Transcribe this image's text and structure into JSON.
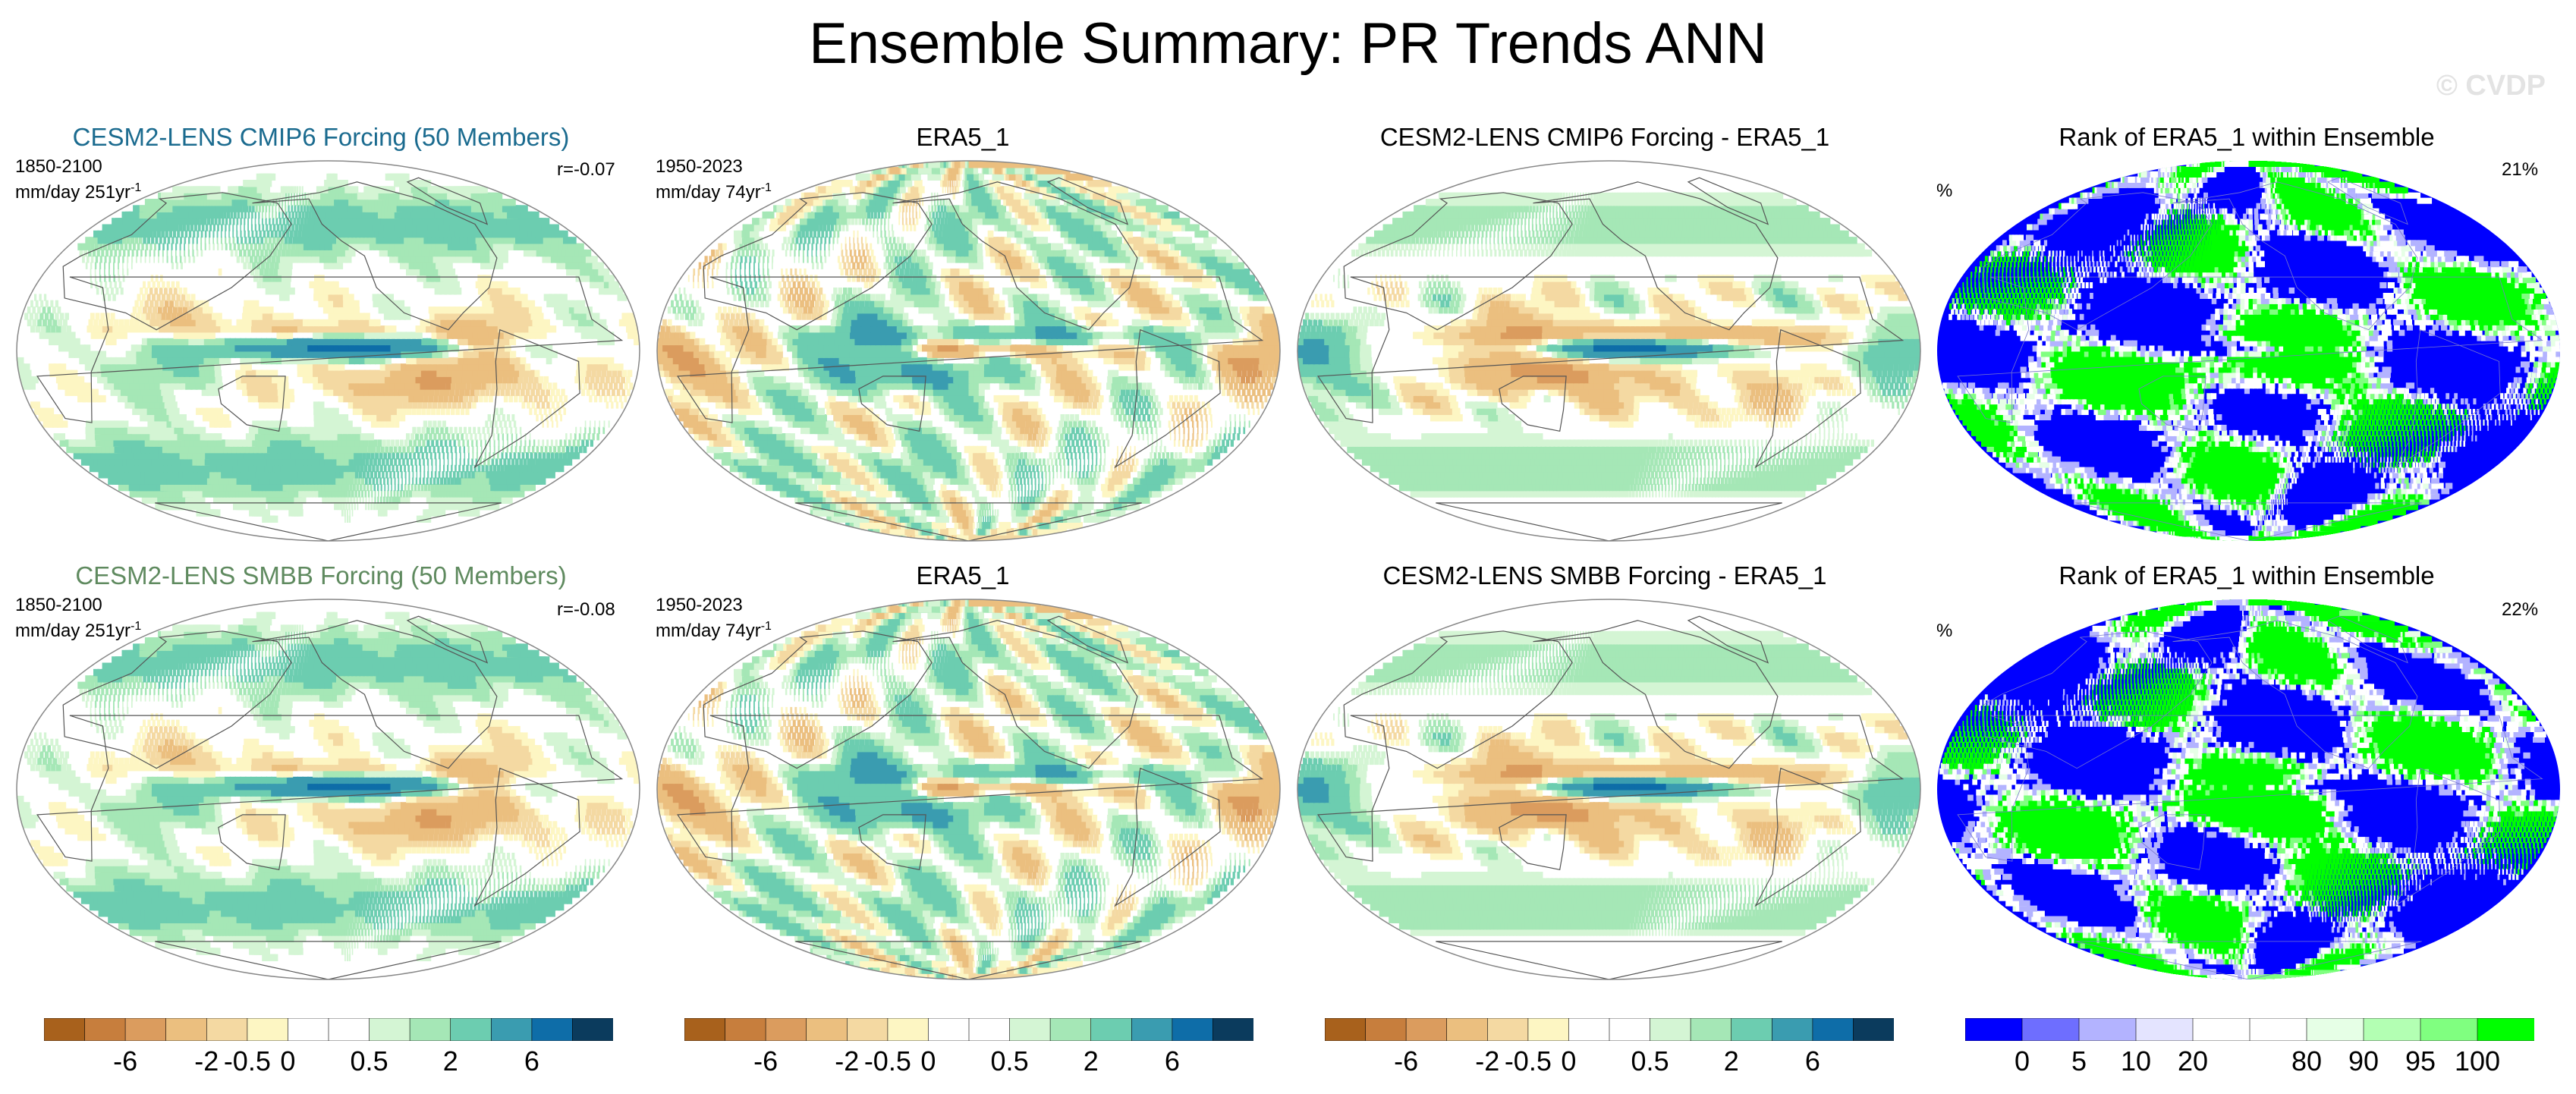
{
  "title": "Ensemble Summary: PR Trends ANN",
  "watermark": "© CVDP",
  "colors": {
    "brown_green": [
      "#a8611c",
      "#c77e3d",
      "#db9c5e",
      "#ebbf7f",
      "#f4d9a2",
      "#fdf6c3",
      "#ffffff",
      "#ffffff",
      "#d4f5d4",
      "#a5e7b6",
      "#6ccdb0",
      "#3a9cb0",
      "#0e6da8",
      "#0b3b5d"
    ],
    "rank": [
      "#0000ff",
      "#6e6eff",
      "#b3b3ff",
      "#e4e4ff",
      "#ffffff",
      "#ffffff",
      "#e6ffe6",
      "#b3ffb3",
      "#80ff80",
      "#00ff00"
    ]
  },
  "rows": [
    {
      "model_title": "CESM2-LENS CMIP6 Forcing (50 Members)",
      "model_title_color": "#1b6b8f",
      "period": "1850-2100",
      "units": "mm/day 251yr",
      "corr": "r=-0.07",
      "obs_title": "ERA5_1",
      "obs_period": "1950-2023",
      "obs_units": "mm/day 74yr",
      "diff_title": "CESM2-LENS CMIP6 Forcing - ERA5_1",
      "rank_title": "Rank of ERA5_1 within Ensemble",
      "rank_pct_label": "%",
      "rank_value": "21%"
    },
    {
      "model_title": "CESM2-LENS SMBB Forcing (50 Members)",
      "model_title_color": "#5f8a5f",
      "period": "1850-2100",
      "units": "mm/day 251yr",
      "corr": "r=-0.08",
      "obs_title": "ERA5_1",
      "obs_period": "1950-2023",
      "obs_units": "mm/day 74yr",
      "diff_title": "CESM2-LENS SMBB Forcing - ERA5_1",
      "rank_title": "Rank of ERA5_1 within Ensemble",
      "rank_pct_label": "%",
      "rank_value": "22%"
    }
  ],
  "unit_exponent": "-1",
  "colorbar_labels": [
    "-6",
    "-2",
    "-0.5",
    "0",
    "0.5",
    "2",
    "6"
  ],
  "rank_colorbar_labels": [
    "0",
    "5",
    "10",
    "20",
    "80",
    "90",
    "95",
    "100"
  ]
}
